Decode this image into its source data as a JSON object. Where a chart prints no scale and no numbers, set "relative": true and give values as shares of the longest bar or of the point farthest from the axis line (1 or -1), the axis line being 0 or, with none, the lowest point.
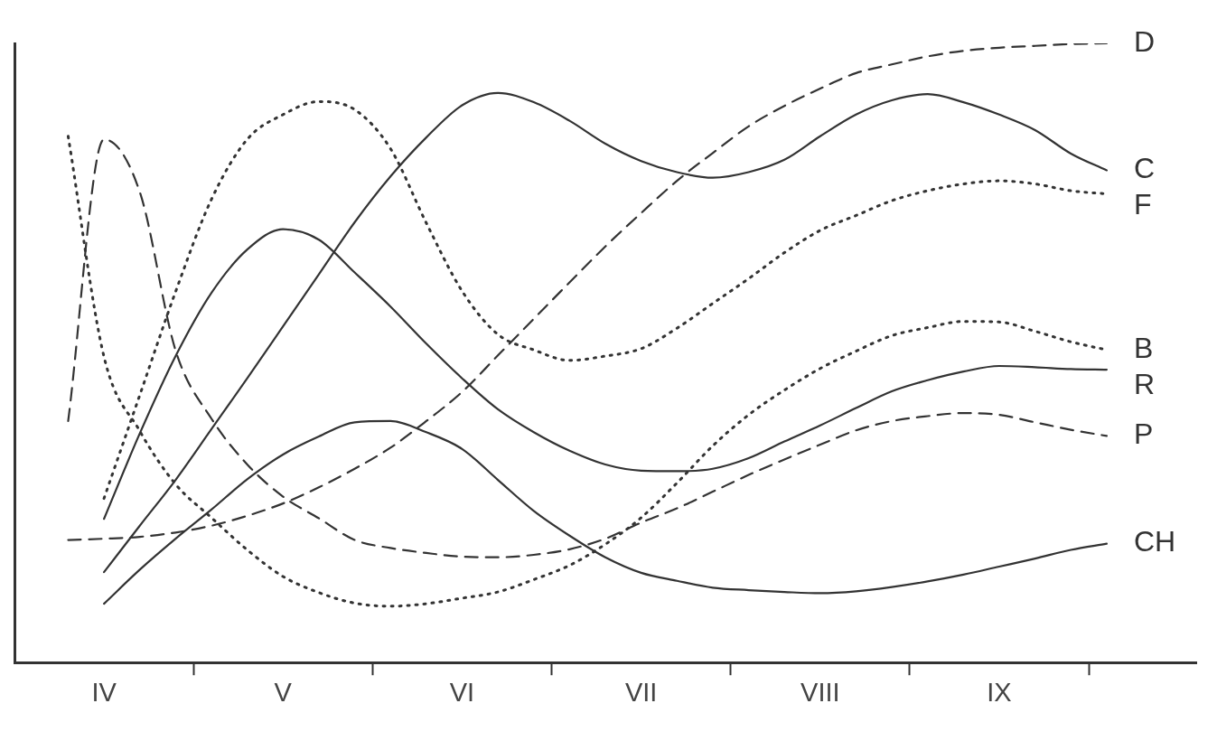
{
  "chart_data": {
    "type": "line",
    "relative": true,
    "categories": [
      null,
      null,
      "IV",
      null,
      null,
      null,
      null,
      "V",
      null,
      null,
      null,
      null,
      "VI",
      null,
      null,
      null,
      null,
      "VII",
      null,
      null,
      null,
      null,
      "VIII",
      null,
      null,
      null,
      null,
      "IX",
      null,
      null,
      null,
      null,
      null
    ],
    "marker": "none",
    "legend": false,
    "series": [
      {
        "name": "D",
        "color": "#333333",
        "line_style": "dashed",
        "values": [
          null,
          0.198,
          0.2,
          0.203,
          0.21,
          0.221,
          0.237,
          0.257,
          0.283,
          0.313,
          0.347,
          0.39,
          0.437,
          0.496,
          0.555,
          0.614,
          0.672,
          0.726,
          0.778,
          0.823,
          0.866,
          0.899,
          0.927,
          0.952,
          0.966,
          0.979,
          0.988,
          0.993,
          0.996,
          0.999,
          1.0,
          null,
          null
        ]
      },
      {
        "name": "C",
        "color": "#333333",
        "line_style": "solid",
        "values": [
          null,
          null,
          0.146,
          0.221,
          0.295,
          0.377,
          0.459,
          0.543,
          0.627,
          0.711,
          0.785,
          0.848,
          0.9,
          0.92,
          0.905,
          0.875,
          0.838,
          0.81,
          0.792,
          0.783,
          0.792,
          0.812,
          0.85,
          0.885,
          0.908,
          0.918,
          0.905,
          0.885,
          0.86,
          0.822,
          0.795,
          null,
          null
        ]
      },
      {
        "name": "F",
        "color": "#333333",
        "line_style": "dotted",
        "values": [
          null,
          null,
          0.265,
          0.432,
          0.599,
          0.748,
          0.845,
          0.885,
          0.906,
          0.893,
          0.83,
          0.71,
          0.6,
          0.53,
          0.505,
          0.488,
          0.495,
          0.507,
          0.54,
          0.58,
          0.62,
          0.662,
          0.698,
          0.722,
          0.746,
          0.762,
          0.773,
          0.778,
          0.773,
          0.762,
          0.757,
          null,
          null
        ]
      },
      {
        "name": "B",
        "color": "#333333",
        "line_style": "dotted",
        "values": [
          null,
          0.85,
          0.494,
          0.374,
          0.288,
          0.234,
          0.182,
          0.139,
          0.113,
          0.096,
          0.091,
          0.095,
          0.104,
          0.114,
          0.134,
          0.157,
          0.191,
          0.234,
          0.29,
          0.35,
          0.4,
          0.44,
          0.475,
          0.503,
          0.528,
          0.541,
          0.551,
          0.55,
          0.535,
          0.518,
          0.505,
          null,
          null
        ]
      },
      {
        "name": "R",
        "color": "#333333",
        "line_style": "solid",
        "values": [
          null,
          null,
          0.232,
          0.37,
          0.495,
          0.597,
          0.667,
          0.7,
          0.683,
          0.63,
          0.575,
          0.515,
          0.459,
          0.409,
          0.372,
          0.342,
          0.32,
          0.31,
          0.309,
          0.313,
          0.33,
          0.357,
          0.383,
          0.411,
          0.438,
          0.456,
          0.47,
          0.479,
          0.477,
          0.474,
          0.473,
          null,
          null
        ]
      },
      {
        "name": "P",
        "color": "#333333",
        "line_style": "dashed",
        "values": [
          null,
          0.39,
          0.845,
          0.76,
          0.504,
          0.394,
          0.32,
          0.268,
          0.233,
          0.198,
          0.185,
          0.177,
          0.171,
          0.17,
          0.174,
          0.183,
          0.2,
          0.226,
          0.249,
          0.276,
          0.303,
          0.328,
          0.352,
          0.375,
          0.39,
          0.398,
          0.403,
          0.4,
          0.388,
          0.376,
          0.366,
          null,
          null
        ]
      },
      {
        "name": "CH",
        "color": "#333333",
        "line_style": "solid",
        "values": [
          null,
          null,
          0.095,
          0.15,
          0.2,
          0.247,
          0.296,
          0.336,
          0.365,
          0.388,
          0.39,
          0.372,
          0.345,
          0.295,
          0.245,
          0.205,
          0.17,
          0.145,
          0.132,
          0.121,
          0.117,
          0.114,
          0.112,
          0.115,
          0.122,
          0.131,
          0.142,
          0.155,
          0.168,
          0.182,
          0.192,
          null,
          null
        ]
      }
    ]
  }
}
